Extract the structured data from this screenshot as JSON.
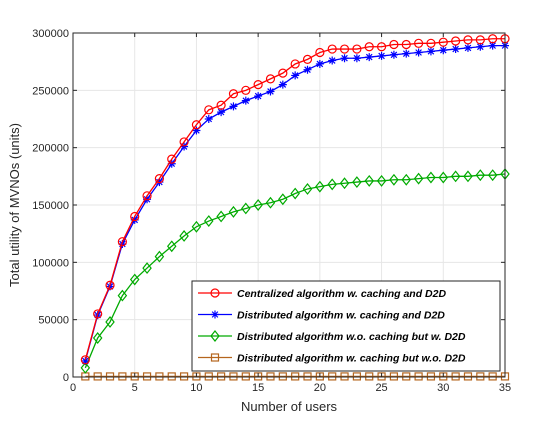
{
  "chart_data": {
    "type": "line",
    "xlabel": "Number of users",
    "ylabel": "Total utility of MVNOs (units)",
    "xlim": [
      0,
      35
    ],
    "ylim": [
      0,
      300000
    ],
    "xticks": [
      0,
      5,
      10,
      15,
      20,
      25,
      30,
      35
    ],
    "yticks": [
      0,
      50000,
      100000,
      150000,
      200000,
      250000,
      300000
    ],
    "grid": true,
    "legend_position": "bottom-right",
    "x": [
      1,
      2,
      3,
      4,
      5,
      6,
      7,
      8,
      9,
      10,
      11,
      12,
      13,
      14,
      15,
      16,
      17,
      18,
      19,
      20,
      21,
      22,
      23,
      24,
      25,
      26,
      27,
      28,
      29,
      30,
      31,
      32,
      33,
      34,
      35
    ],
    "series": [
      {
        "name": "Centralized algorithm w. caching and D2D",
        "color": "#ff0000",
        "marker": "circle",
        "values": [
          15000,
          55000,
          80000,
          118000,
          140000,
          158000,
          173000,
          190000,
          205000,
          220000,
          233000,
          237000,
          247000,
          250000,
          255000,
          260000,
          265000,
          273000,
          277000,
          283000,
          286000,
          286000,
          286000,
          288000,
          288000,
          290000,
          290000,
          291000,
          291000,
          292000,
          293000,
          294000,
          294000,
          295000,
          295000
        ]
      },
      {
        "name": "Distributed algorithm w. caching and D2D",
        "color": "#0000ff",
        "marker": "star",
        "values": [
          14000,
          54000,
          79000,
          116000,
          137000,
          155000,
          170000,
          186000,
          201000,
          215000,
          225000,
          231000,
          236000,
          241000,
          245000,
          249000,
          255000,
          263000,
          268000,
          273000,
          276000,
          278000,
          278000,
          279000,
          280000,
          281000,
          282000,
          283000,
          284000,
          285000,
          286000,
          287000,
          288000,
          289000,
          289000
        ]
      },
      {
        "name": "Distributed algorithm w.o. caching but w. D2D",
        "color": "#00aa00",
        "marker": "diamond",
        "values": [
          8000,
          34000,
          48000,
          71000,
          85000,
          95000,
          105000,
          114000,
          123000,
          131000,
          136000,
          140000,
          144000,
          147000,
          150000,
          152000,
          155000,
          160000,
          164000,
          166000,
          168000,
          169000,
          170000,
          171000,
          171000,
          172000,
          172000,
          173000,
          174000,
          174000,
          175000,
          175000,
          176000,
          176000,
          177000
        ]
      },
      {
        "name": "Distributed algorithm w. caching but w.o. D2D",
        "color": "#b5651d",
        "marker": "square",
        "values": [
          500,
          500,
          500,
          500,
          500,
          500,
          500,
          500,
          500,
          500,
          500,
          500,
          500,
          500,
          500,
          500,
          500,
          500,
          500,
          500,
          500,
          500,
          500,
          500,
          500,
          500,
          500,
          500,
          500,
          500,
          500,
          500,
          500,
          500,
          500
        ]
      }
    ]
  }
}
